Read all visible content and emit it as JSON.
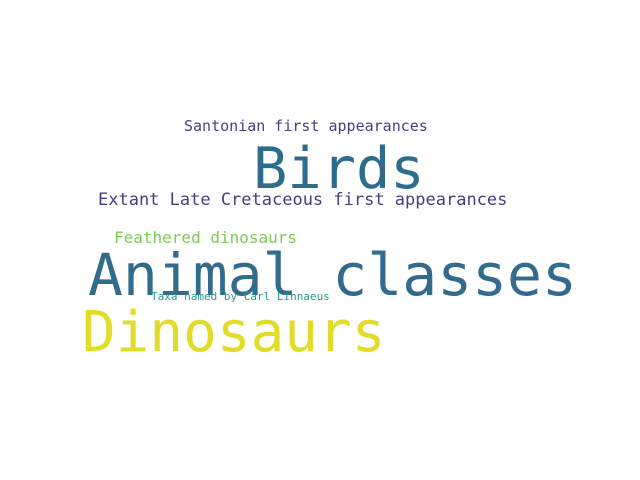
{
  "words": [
    {
      "text": "Santonian first appearances",
      "color": "#4a3f82"
    },
    {
      "text": "Birds",
      "color": "#2f6b8a"
    },
    {
      "text": "Extant Late Cretaceous first appearances",
      "color": "#463f7f"
    },
    {
      "text": "Feathered dinosaurs",
      "color": "#7ccb52"
    },
    {
      "text": "Animal classes",
      "color": "#336b8c"
    },
    {
      "text": "Taxa named by Carl Linnaeus",
      "color": "#2a9a8c"
    },
    {
      "text": "Dinosaurs",
      "color": "#e1dc2a"
    }
  ]
}
